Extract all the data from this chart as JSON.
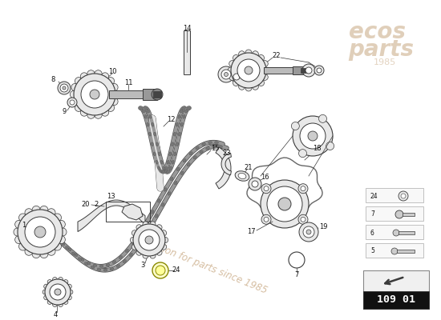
{
  "background_color": "#ffffff",
  "part_number": "109 01",
  "watermark_text": "a passion for parts since 1985",
  "watermark_color": "#c8a882",
  "fig_width": 5.5,
  "fig_height": 4.0,
  "gray": "#3a3a3a",
  "lgray": "#888888",
  "dgray": "#1a1a1a",
  "chain_color": "#555555",
  "fill_light": "#e8e8e8",
  "fill_mid": "#cccccc",
  "fill_dark": "#aaaaaa"
}
